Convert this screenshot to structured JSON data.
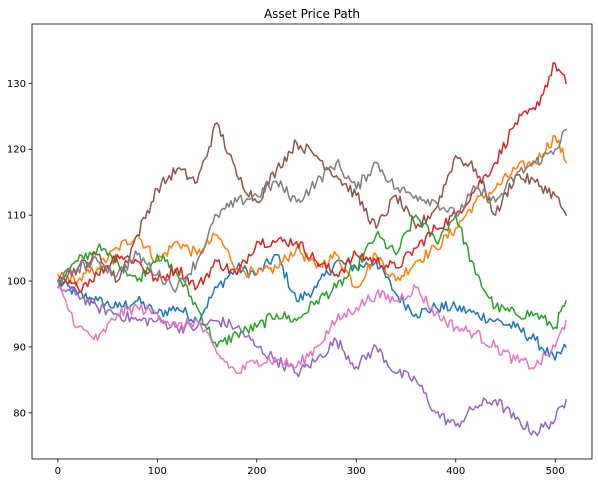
{
  "chart_data": {
    "type": "line",
    "title": "Asset Price Path",
    "xlabel": "",
    "ylabel": "",
    "xlim": [
      -26,
      537
    ],
    "ylim": [
      73,
      139
    ],
    "x_ticks": [
      0,
      100,
      200,
      300,
      400,
      500
    ],
    "x_tick_labels": [
      "0",
      "100",
      "200",
      "300",
      "400",
      "500"
    ],
    "y_ticks": [
      80,
      90,
      100,
      110,
      120,
      130
    ],
    "y_tick_labels": [
      "80",
      "90",
      "100",
      "110",
      "120",
      "130"
    ],
    "grid": false,
    "legend": false,
    "x_points": [
      0,
      20,
      40,
      60,
      80,
      100,
      120,
      140,
      160,
      180,
      200,
      220,
      240,
      260,
      280,
      300,
      320,
      340,
      360,
      380,
      400,
      420,
      440,
      460,
      480,
      500,
      511
    ],
    "series": [
      {
        "color": "#1f77b4",
        "values": [
          100,
          98,
          97,
          96,
          97,
          95,
          96,
          94,
          99,
          102,
          101,
          104,
          97,
          99,
          103,
          102,
          103,
          98,
          95,
          96,
          96,
          95,
          94,
          93,
          91,
          88,
          90
        ]
      },
      {
        "color": "#ff7f0e",
        "values": [
          101,
          100,
          102,
          105,
          107,
          103,
          106,
          104,
          107,
          102,
          101,
          102,
          105,
          102,
          104,
          99,
          104,
          100,
          103,
          105,
          108,
          112,
          114,
          117,
          118,
          122,
          118
        ]
      },
      {
        "color": "#2ca02c",
        "values": [
          100,
          103,
          105,
          103,
          100,
          104,
          101,
          96,
          90,
          92,
          93,
          95,
          94,
          97,
          99,
          102,
          107,
          104,
          110,
          106,
          110,
          101,
          96,
          95,
          95,
          93,
          97
        ]
      },
      {
        "color": "#d62728",
        "values": [
          100,
          99,
          101,
          104,
          103,
          100,
          102,
          99,
          103,
          101,
          106,
          106,
          106,
          103,
          101,
          104,
          103,
          102,
          105,
          108,
          110,
          114,
          118,
          124,
          126,
          133,
          130
        ]
      },
      {
        "color": "#9467bd",
        "values": [
          99,
          98,
          96,
          95,
          94,
          94,
          93,
          93,
          94,
          93,
          90,
          88,
          86,
          88,
          91,
          87,
          90,
          86,
          85,
          80,
          78,
          81,
          82,
          79,
          77,
          79,
          82
        ]
      },
      {
        "color": "#8c564b",
        "values": [
          100,
          102,
          104,
          100,
          107,
          114,
          117,
          115,
          124,
          116,
          112,
          117,
          121,
          119,
          116,
          113,
          108,
          113,
          108,
          111,
          119,
          117,
          110,
          116,
          115,
          113,
          110
        ]
      },
      {
        "color": "#e377c2",
        "values": [
          99,
          93,
          91,
          95,
          96,
          95,
          93,
          94,
          89,
          86,
          88,
          88,
          87,
          90,
          94,
          96,
          98,
          97,
          99,
          95,
          93,
          92,
          90,
          88,
          87,
          90,
          94
        ]
      },
      {
        "color": "#7f7f7f",
        "values": [
          100,
          102,
          103,
          101,
          104,
          101,
          99,
          103,
          110,
          112,
          113,
          115,
          112,
          115,
          118,
          114,
          118,
          114,
          113,
          112,
          110,
          114,
          112,
          116,
          118,
          120,
          123
        ]
      }
    ]
  }
}
